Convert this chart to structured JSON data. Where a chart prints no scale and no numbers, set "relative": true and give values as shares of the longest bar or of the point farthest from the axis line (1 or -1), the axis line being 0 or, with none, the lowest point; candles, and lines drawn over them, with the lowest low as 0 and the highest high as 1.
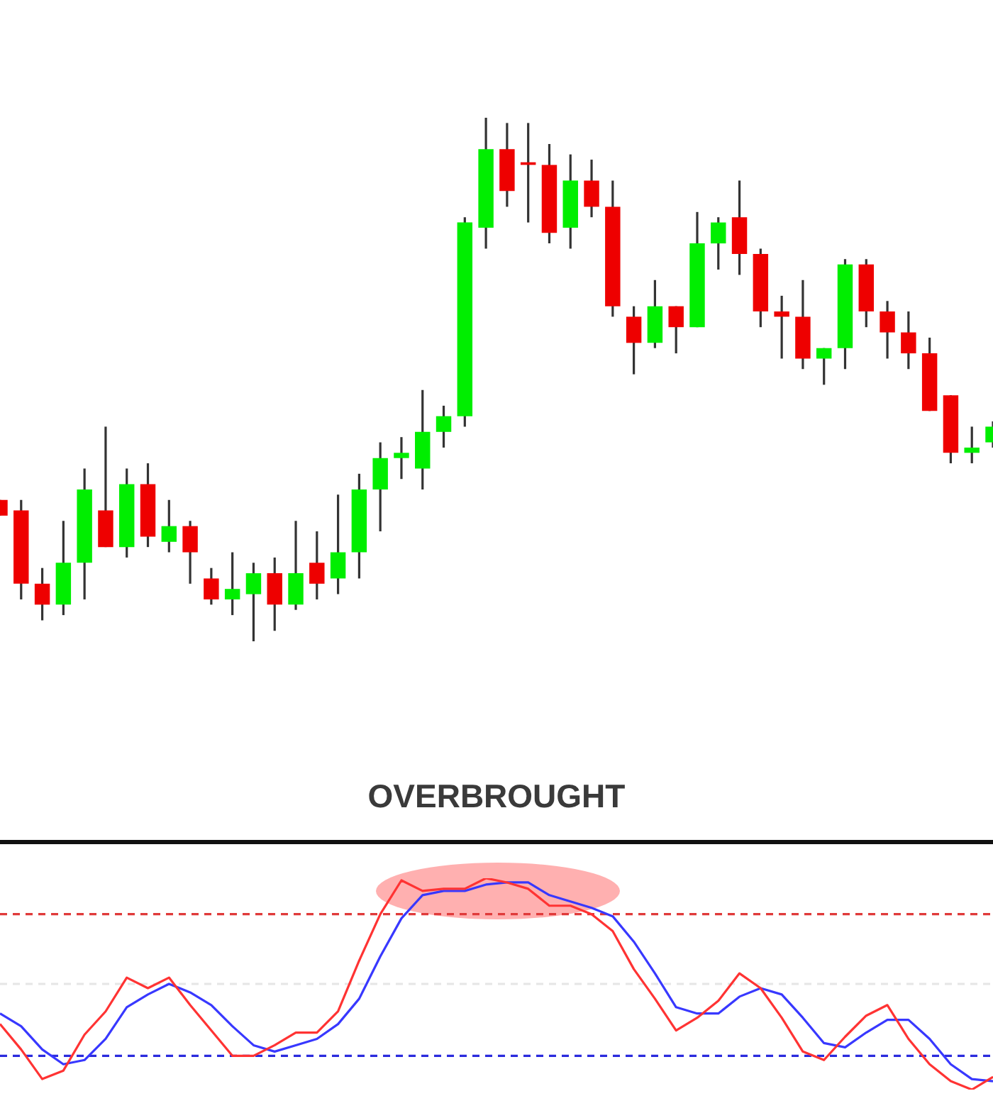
{
  "chart_data": [
    {
      "type": "candlestick",
      "relative": true,
      "categories": [
        null,
        null,
        null,
        null,
        null,
        null,
        null,
        null,
        null,
        null,
        null,
        null,
        null,
        null,
        null,
        null,
        null,
        null,
        null,
        null,
        null,
        null,
        null,
        null,
        null,
        null,
        null,
        null,
        null,
        null,
        null,
        null,
        null,
        null,
        null,
        null,
        null,
        null,
        null,
        null,
        null,
        null,
        null,
        null,
        null,
        null,
        null,
        null
      ],
      "ohlc": [
        [
          0.27,
          0.27,
          0.24,
          0.24
        ],
        [
          0.25,
          0.27,
          0.08,
          0.11
        ],
        [
          0.11,
          0.14,
          0.04,
          0.07
        ],
        [
          0.07,
          0.23,
          0.05,
          0.15
        ],
        [
          0.15,
          0.33,
          0.08,
          0.29
        ],
        [
          0.25,
          0.41,
          0.18,
          0.18
        ],
        [
          0.18,
          0.33,
          0.16,
          0.3
        ],
        [
          0.3,
          0.34,
          0.18,
          0.2
        ],
        [
          0.19,
          0.27,
          0.17,
          0.22
        ],
        [
          0.22,
          0.23,
          0.11,
          0.17
        ],
        [
          0.12,
          0.14,
          0.07,
          0.08
        ],
        [
          0.08,
          0.17,
          0.05,
          0.1
        ],
        [
          0.09,
          0.15,
          0,
          0.13
        ],
        [
          0.13,
          0.16,
          0.02,
          0.07
        ],
        [
          0.07,
          0.23,
          0.06,
          0.13
        ],
        [
          0.15,
          0.21,
          0.08,
          0.11
        ],
        [
          0.12,
          0.28,
          0.09,
          0.17
        ],
        [
          0.17,
          0.32,
          0.12,
          0.29
        ],
        [
          0.29,
          0.38,
          0.21,
          0.35
        ],
        [
          0.35,
          0.39,
          0.31,
          0.36
        ],
        [
          0.33,
          0.48,
          0.29,
          0.4
        ],
        [
          0.4,
          0.45,
          0.37,
          0.43
        ],
        [
          0.43,
          0.81,
          0.41,
          0.8
        ],
        [
          0.79,
          1,
          0.75,
          0.94
        ],
        [
          0.94,
          0.99,
          0.83,
          0.86
        ],
        [
          0.915,
          0.99,
          0.8,
          0.91
        ],
        [
          0.91,
          0.95,
          0.76,
          0.78
        ],
        [
          0.79,
          0.93,
          0.75,
          0.88
        ],
        [
          0.88,
          0.92,
          0.81,
          0.83
        ],
        [
          0.83,
          0.88,
          0.62,
          0.64
        ],
        [
          0.62,
          0.64,
          0.51,
          0.57
        ],
        [
          0.57,
          0.69,
          0.56,
          0.64
        ],
        [
          0.64,
          0.64,
          0.55,
          0.6
        ],
        [
          0.6,
          0.82,
          0.6,
          0.76
        ],
        [
          0.76,
          0.81,
          0.71,
          0.8
        ],
        [
          0.81,
          0.88,
          0.7,
          0.74
        ],
        [
          0.74,
          0.75,
          0.6,
          0.63
        ],
        [
          0.63,
          0.66,
          0.54,
          0.62
        ],
        [
          0.62,
          0.69,
          0.52,
          0.54
        ],
        [
          0.54,
          0.56,
          0.49,
          0.56
        ],
        [
          0.56,
          0.73,
          0.52,
          0.72
        ],
        [
          0.72,
          0.73,
          0.6,
          0.63
        ],
        [
          0.63,
          0.65,
          0.54,
          0.59
        ],
        [
          0.59,
          0.63,
          0.52,
          0.55
        ],
        [
          0.55,
          0.58,
          0.44,
          0.44
        ],
        [
          0.47,
          0.47,
          0.34,
          0.36
        ],
        [
          0.36,
          0.41,
          0.34,
          0.37
        ],
        [
          0.38,
          0.42,
          0.37,
          0.41
        ]
      ],
      "colors": [
        "#ee0000",
        "#ee0000",
        "#ee0000",
        "#00ee00",
        "#00ee00",
        "#ee0000",
        "#00ee00",
        "#ee0000",
        "#00ee00",
        "#ee0000",
        "#ee0000",
        "#00ee00",
        "#00ee00",
        "#ee0000",
        "#00ee00",
        "#ee0000",
        "#00ee00",
        "#00ee00",
        "#00ee00",
        "#00ee00",
        "#00ee00",
        "#00ee00",
        "#00ee00",
        "#00ee00",
        "#ee0000",
        "#ee0000",
        "#ee0000",
        "#00ee00",
        "#ee0000",
        "#ee0000",
        "#ee0000",
        "#00ee00",
        "#ee0000",
        "#00ee00",
        "#00ee00",
        "#ee0000",
        "#ee0000",
        "#ee0000",
        "#ee0000",
        "#00ee00",
        "#00ee00",
        "#ee0000",
        "#ee0000",
        "#ee0000",
        "#ee0000",
        "#ee0000",
        "#00ee00",
        "#00ee00"
      ]
    },
    {
      "type": "line",
      "title": "OVERBROUGHT",
      "relative": true,
      "categories": [
        null,
        null,
        null,
        null,
        null,
        null,
        null,
        null,
        null,
        null,
        null,
        null,
        null,
        null,
        null,
        null,
        null,
        null,
        null,
        null,
        null,
        null,
        null,
        null,
        null,
        null,
        null,
        null,
        null,
        null,
        null,
        null,
        null,
        null,
        null,
        null,
        null,
        null,
        null,
        null,
        null,
        null,
        null,
        null,
        null,
        null,
        null,
        null
      ],
      "series": [
        {
          "color": "#ff3333",
          "values": [
            0.31,
            0.19,
            0.05,
            0.09,
            0.26,
            0.37,
            0.53,
            0.48,
            0.53,
            0.4,
            0.28,
            0.16,
            0.16,
            0.21,
            0.27,
            0.27,
            0.37,
            0.61,
            0.83,
            0.99,
            0.94,
            0.95,
            0.95,
            1,
            0.98,
            0.95,
            0.87,
            0.87,
            0.83,
            0.75,
            0.57,
            0.43,
            0.28,
            0.34,
            0.42,
            0.55,
            0.48,
            0.34,
            0.18,
            0.14,
            0.25,
            0.35,
            0.4,
            0.24,
            0.12,
            0.04,
            0,
            0.06
          ]
        },
        {
          "color": "#3838ff",
          "values": [
            0.36,
            0.3,
            0.19,
            0.12,
            0.14,
            0.24,
            0.39,
            0.45,
            0.5,
            0.46,
            0.4,
            0.3,
            0.21,
            0.18,
            0.21,
            0.24,
            0.31,
            0.43,
            0.63,
            0.81,
            0.92,
            0.94,
            0.94,
            0.97,
            0.98,
            0.98,
            0.92,
            0.89,
            0.86,
            0.82,
            0.7,
            0.55,
            0.39,
            0.36,
            0.36,
            0.44,
            0.48,
            0.45,
            0.34,
            0.22,
            0.2,
            0.27,
            0.33,
            0.33,
            0.24,
            0.12,
            0.05,
            0.04
          ]
        }
      ],
      "ref_lines": [
        {
          "axis": "y",
          "value": 0.83,
          "color": "#e03a3a",
          "line_style": "dashed"
        },
        {
          "axis": "y",
          "value": 0.5,
          "color": "#e6e6e6",
          "line_style": "dashed"
        },
        {
          "axis": "y",
          "value": 0.16,
          "color": "#2b2bdd",
          "line_style": "dashed"
        }
      ]
    }
  ]
}
